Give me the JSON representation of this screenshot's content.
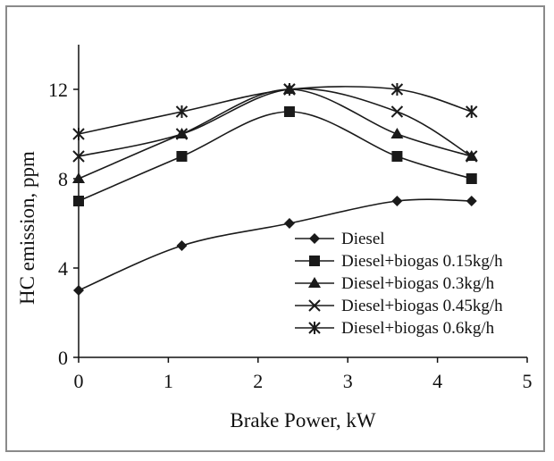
{
  "chart_data": {
    "type": "line",
    "title": "",
    "xlabel": "Brake Power, kW",
    "ylabel": "HC emission,  ppm",
    "xlim": [
      0,
      5
    ],
    "ylim": [
      0,
      14
    ],
    "xticks": [
      0,
      1,
      2,
      3,
      4,
      5
    ],
    "yticks": [
      0,
      4,
      8,
      12
    ],
    "grid": false,
    "legend_position": "bottom-right",
    "x": [
      0,
      1.15,
      2.35,
      3.55,
      4.38
    ],
    "series": [
      {
        "name": "Diesel",
        "marker": "diamond",
        "values": [
          3,
          5,
          6,
          7,
          7
        ]
      },
      {
        "name": "Diesel+biogas 0.15kg/h",
        "marker": "square",
        "values": [
          7,
          9,
          11,
          9,
          8
        ]
      },
      {
        "name": "Diesel+biogas 0.3kg/h",
        "marker": "triangle",
        "values": [
          8,
          10,
          12,
          10,
          9
        ]
      },
      {
        "name": "Diesel+biogas 0.45kg/h",
        "marker": "x",
        "values": [
          9,
          10,
          12,
          11,
          9
        ]
      },
      {
        "name": "Diesel+biogas 0.6kg/h",
        "marker": "asterisk",
        "values": [
          10,
          11,
          12,
          12,
          11
        ]
      }
    ],
    "colors": {
      "line": "#1a1a1a",
      "axis": "#111111"
    }
  }
}
